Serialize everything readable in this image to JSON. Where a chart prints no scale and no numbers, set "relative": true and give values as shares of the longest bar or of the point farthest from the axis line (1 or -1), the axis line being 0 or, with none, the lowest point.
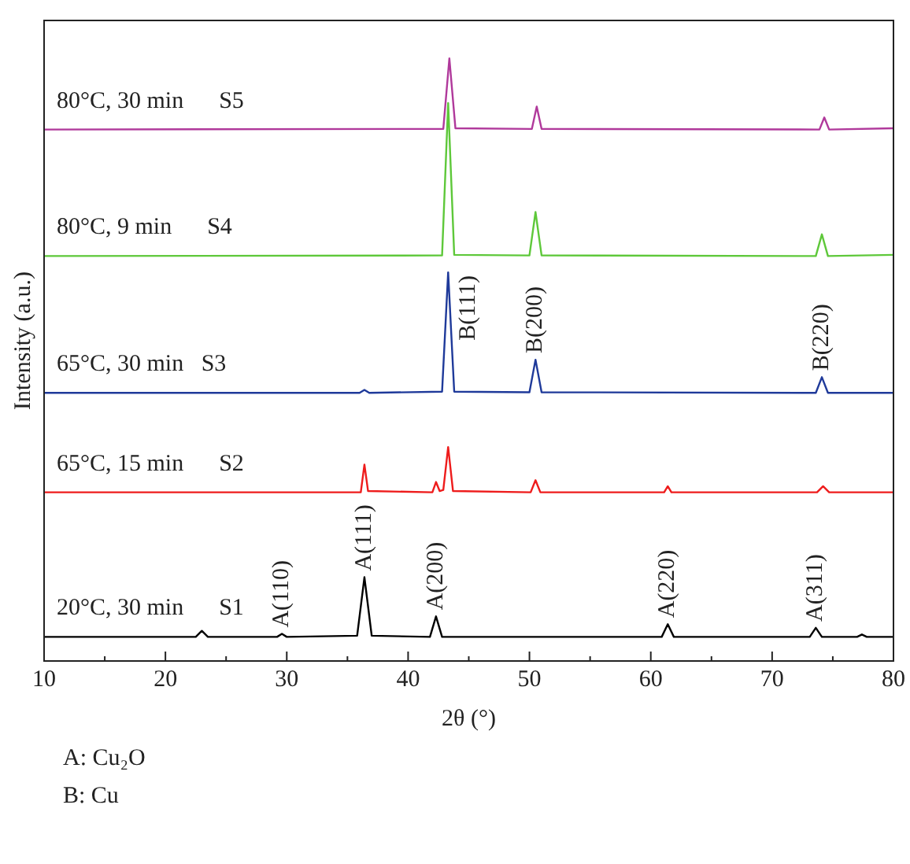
{
  "chart_data": {
    "type": "line",
    "relative": true,
    "xlabel": "2θ (°)",
    "ylabel": "Intensity (a.u.)",
    "xlim": [
      10,
      80
    ],
    "xticks": [
      10,
      {
        "value": 15,
        "label": null
      },
      20,
      {
        "value": 25,
        "label": null
      },
      30,
      {
        "value": 35,
        "label": null
      },
      40,
      {
        "value": 45,
        "label": null
      },
      50,
      {
        "value": 55,
        "label": null
      },
      60,
      {
        "value": 65,
        "label": null
      },
      70,
      {
        "value": 75,
        "label": null
      },
      80
    ],
    "grid": false,
    "legend": false,
    "marker": "none",
    "line_style": "solid",
    "series": [
      {
        "name": "20°C, 30 min      S1",
        "color": "#000000",
        "x": [
          10,
          22.5,
          23,
          23.5,
          29.2,
          29.6,
          30,
          35.8,
          36.4,
          37,
          41.8,
          42.3,
          42.8,
          60.9,
          61.4,
          61.9,
          73.1,
          73.6,
          74.1,
          77,
          77.4,
          77.8,
          80
        ],
        "values": [
          0.04,
          0.04,
          0.05,
          0.04,
          0.04,
          0.045,
          0.04,
          0.042,
          0.139,
          0.042,
          0.04,
          0.074,
          0.04,
          0.04,
          0.061,
          0.04,
          0.04,
          0.055,
          0.04,
          0.04,
          0.044,
          0.04,
          0.04
        ]
      },
      {
        "name": "65°C, 15 min      S2",
        "color": "#ee1c1c",
        "x": [
          10,
          36.1,
          36.4,
          36.7,
          42,
          42.3,
          42.6,
          42.9,
          43.3,
          43.7,
          50.1,
          50.5,
          50.9,
          61.1,
          61.4,
          61.7,
          73.7,
          74.2,
          74.7,
          80
        ],
        "values": [
          0.28,
          0.28,
          0.326,
          0.282,
          0.28,
          0.297,
          0.282,
          0.284,
          0.355,
          0.282,
          0.28,
          0.3,
          0.28,
          0.28,
          0.29,
          0.28,
          0.28,
          0.29,
          0.28,
          0.28
        ]
      },
      {
        "name": "65°C, 30 min   S3",
        "color": "#1f3a9a",
        "x": [
          10,
          36,
          36.4,
          36.8,
          42.8,
          43.3,
          43.8,
          50,
          50.5,
          51,
          73.6,
          74.1,
          74.6,
          80
        ],
        "values": [
          0.445,
          0.445,
          0.45,
          0.445,
          0.447,
          0.645,
          0.447,
          0.446,
          0.5,
          0.446,
          0.445,
          0.471,
          0.445,
          0.445
        ]
      },
      {
        "name": "80°C, 9 min      S4",
        "color": "#5ec83a",
        "x": [
          10,
          42.8,
          43.3,
          43.8,
          50,
          50.5,
          51,
          73.6,
          74.1,
          74.6,
          80
        ],
        "values": [
          0.672,
          0.673,
          0.926,
          0.674,
          0.673,
          0.745,
          0.673,
          0.672,
          0.708,
          0.672,
          0.674
        ]
      },
      {
        "name": "80°C, 30 min      S5",
        "color": "#b0399b",
        "x": [
          10,
          42.9,
          43.4,
          43.9,
          50.2,
          50.6,
          51,
          73.9,
          74.3,
          74.7,
          80
        ],
        "values": [
          0.882,
          0.883,
          1,
          0.884,
          0.883,
          0.92,
          0.883,
          0.882,
          0.902,
          0.882,
          0.884
        ]
      }
    ],
    "annotations": [
      {
        "text": "A(110)",
        "x": 29.6,
        "y": 0.045
      },
      {
        "text": "A(111)",
        "x": 36.4,
        "y": 0.139
      },
      {
        "text": "A(200)",
        "x": 42.3,
        "y": 0.074
      },
      {
        "text": "A(220)",
        "x": 61.4,
        "y": 0.061
      },
      {
        "text": "A(311)",
        "x": 73.6,
        "y": 0.055
      },
      {
        "text": "B(111)",
        "x": 43.3,
        "y": 0.645
      },
      {
        "text": "B(200)",
        "x": 50.5,
        "y": 0.5
      },
      {
        "text": "B(220)",
        "x": 74.1,
        "y": 0.471
      },
      "A: Cu₂O",
      "B: Cu"
    ]
  }
}
